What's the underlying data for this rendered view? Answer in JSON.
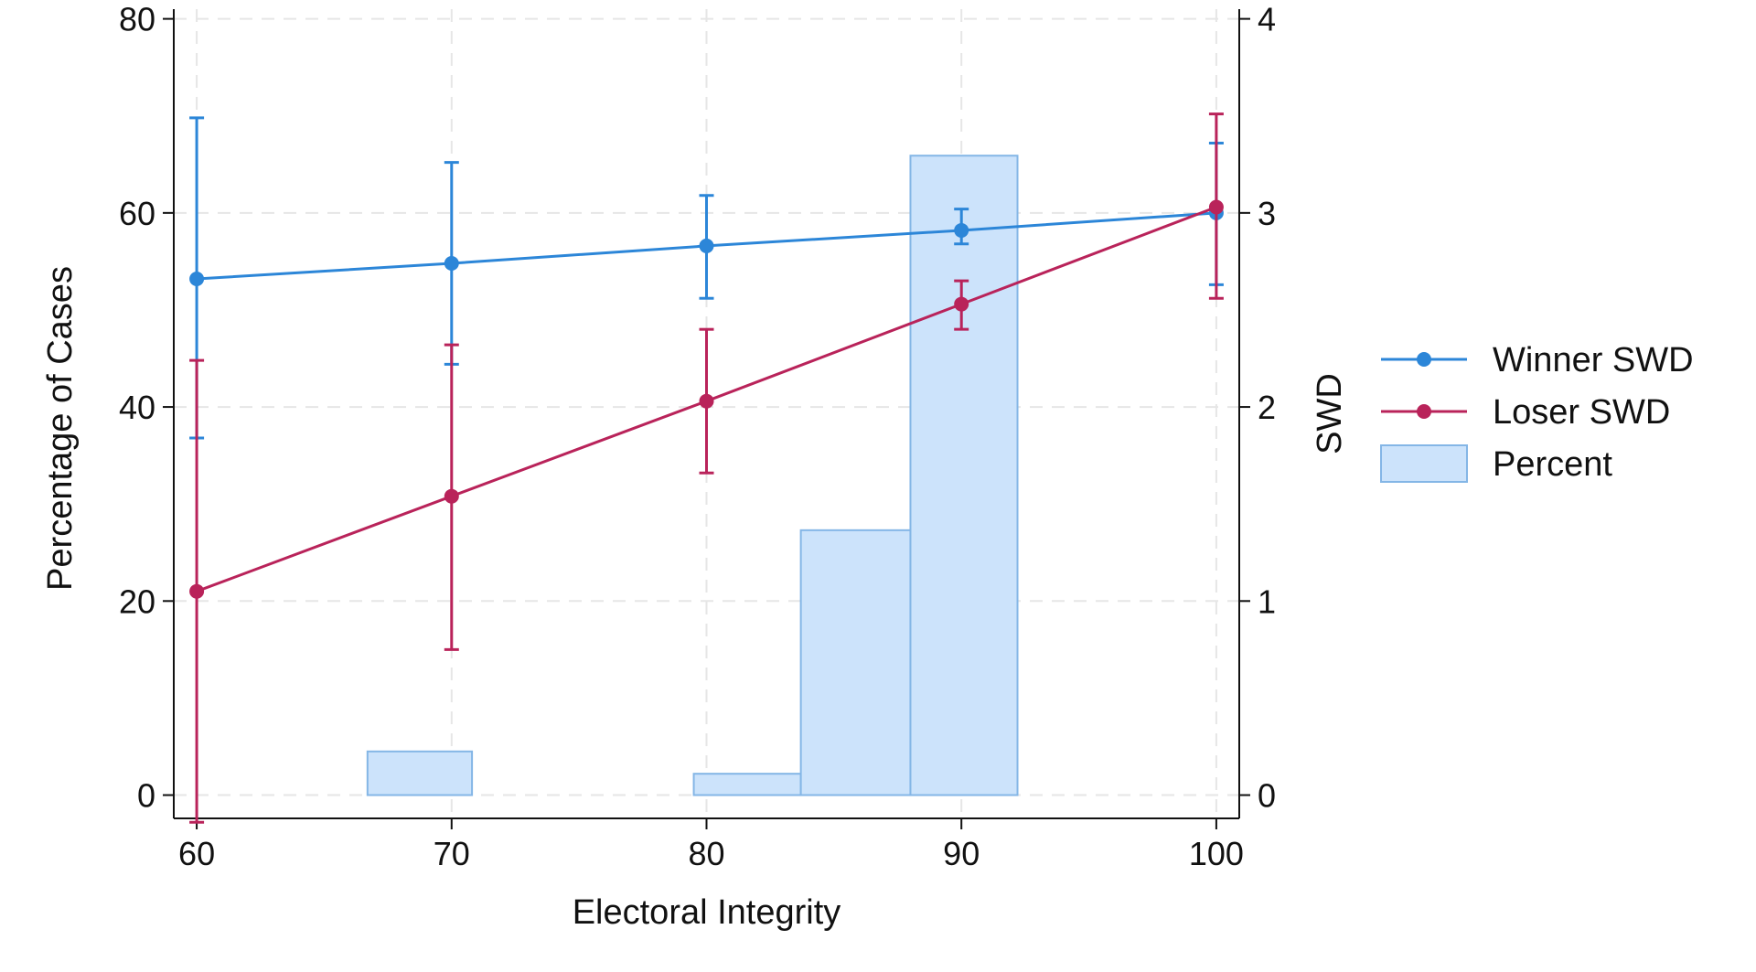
{
  "chart_data": {
    "type": "line",
    "xlabel": "Electoral Integrity",
    "ylabel_left": "Percentage of Cases",
    "ylabel_right": "SWD",
    "xlim": [
      59.1,
      100.9
    ],
    "ylim_left": [
      -2.4,
      81
    ],
    "ylim_right": [
      -0.12,
      4.05
    ],
    "x_ticks": [
      60,
      70,
      80,
      90,
      100
    ],
    "y_left_ticks": [
      0,
      20,
      40,
      60,
      80
    ],
    "y_right_ticks": [
      0,
      1,
      2,
      3,
      4
    ],
    "grid": true,
    "legend_position": "right",
    "histogram": {
      "name": "Percent",
      "axis": "left",
      "bins": [
        {
          "x0": 66.7,
          "x1": 70.8,
          "value": 4.5
        },
        {
          "x0": 79.5,
          "x1": 83.7,
          "value": 2.2
        },
        {
          "x0": 83.7,
          "x1": 88.0,
          "value": 27.3
        },
        {
          "x0": 88.0,
          "x1": 92.2,
          "value": 65.9
        }
      ],
      "color": "#cce3fb",
      "stroke": "#84b6e6"
    },
    "series": [
      {
        "name": "Winner SWD",
        "axis": "right",
        "color": "#2c86d8",
        "x": [
          60,
          70,
          80,
          90,
          100
        ],
        "values": [
          2.66,
          2.74,
          2.83,
          2.91,
          3.0
        ],
        "ci_low": [
          1.84,
          2.22,
          2.56,
          2.84,
          2.63
        ],
        "ci_high": [
          3.49,
          3.26,
          3.09,
          3.02,
          3.36
        ]
      },
      {
        "name": "Loser SWD",
        "axis": "right",
        "color": "#b9235a",
        "x": [
          60,
          70,
          80,
          90,
          100
        ],
        "values": [
          1.05,
          1.54,
          2.03,
          2.53,
          3.03
        ],
        "ci_low": [
          -0.14,
          0.75,
          1.66,
          2.4,
          2.56
        ],
        "ci_high": [
          2.24,
          2.32,
          2.4,
          2.65,
          3.51
        ]
      }
    ]
  }
}
